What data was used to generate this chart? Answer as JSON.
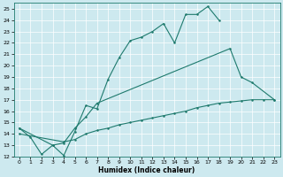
{
  "xlabel": "Humidex (Indice chaleur)",
  "xlim": [
    -0.5,
    23.5
  ],
  "ylim": [
    12,
    25.5
  ],
  "xticks": [
    0,
    1,
    2,
    3,
    4,
    5,
    6,
    7,
    8,
    9,
    10,
    11,
    12,
    13,
    14,
    15,
    16,
    17,
    18,
    19,
    20,
    21,
    22,
    23
  ],
  "yticks": [
    12,
    13,
    14,
    15,
    16,
    17,
    18,
    19,
    20,
    21,
    22,
    23,
    24,
    25
  ],
  "bg_color": "#cde9ef",
  "line_color": "#1e7a6d",
  "grid_color": "#ffffff",
  "line1_x": [
    0,
    1,
    2,
    3,
    4,
    5,
    6,
    7,
    8,
    9,
    10,
    11,
    12,
    13,
    14,
    15,
    16,
    17,
    18
  ],
  "line1_y": [
    14.5,
    13.7,
    12.2,
    13.0,
    12.1,
    14.2,
    16.5,
    16.2,
    18.8,
    20.7,
    22.2,
    22.5,
    23.0,
    23.7,
    22.0,
    24.5,
    24.5,
    25.2,
    24.0
  ],
  "line2_x": [
    0,
    3,
    4,
    5,
    6,
    7,
    19,
    20,
    21,
    23
  ],
  "line2_y": [
    14.5,
    13.0,
    13.2,
    14.5,
    15.5,
    16.7,
    21.5,
    19.0,
    18.5,
    17.0
  ],
  "line3_x": [
    0,
    4,
    5,
    6,
    7,
    8,
    9,
    10,
    11,
    12,
    13,
    14,
    15,
    16,
    17,
    18,
    19,
    20,
    21,
    22,
    23
  ],
  "line3_y": [
    14.0,
    13.3,
    13.5,
    14.0,
    14.3,
    14.5,
    14.8,
    15.0,
    15.2,
    15.4,
    15.6,
    15.8,
    16.0,
    16.3,
    16.5,
    16.7,
    16.8,
    16.9,
    17.0,
    17.0,
    17.0
  ]
}
